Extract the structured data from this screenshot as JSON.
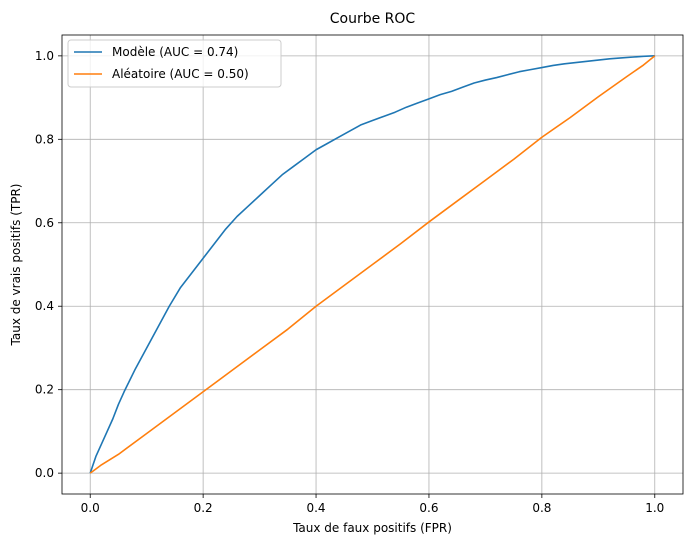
{
  "chart_data": {
    "type": "line",
    "title": "Courbe ROC",
    "xlabel": "Taux de faux positifs (FPR)",
    "ylabel": "Taux de vrais positifs (TPR)",
    "xlim": [
      -0.05,
      1.05
    ],
    "ylim": [
      -0.05,
      1.05
    ],
    "xticks": [
      0.0,
      0.2,
      0.4,
      0.6,
      0.8,
      1.0
    ],
    "yticks": [
      0.0,
      0.2,
      0.4,
      0.6,
      0.8,
      1.0
    ],
    "tick_labels": {
      "x": [
        "0.0",
        "0.2",
        "0.4",
        "0.6",
        "0.8",
        "1.0"
      ],
      "y": [
        "0.0",
        "0.2",
        "0.4",
        "0.6",
        "0.8",
        "1.0"
      ]
    },
    "grid": true,
    "legend_position": "upper-left",
    "series": [
      {
        "name": "Modèle (AUC = 0.74)",
        "color": "#1f77b4",
        "x": [
          0.0,
          0.005,
          0.01,
          0.02,
          0.03,
          0.04,
          0.05,
          0.06,
          0.08,
          0.1,
          0.12,
          0.14,
          0.16,
          0.18,
          0.2,
          0.22,
          0.24,
          0.26,
          0.28,
          0.3,
          0.32,
          0.34,
          0.36,
          0.38,
          0.4,
          0.42,
          0.44,
          0.46,
          0.48,
          0.5,
          0.52,
          0.54,
          0.56,
          0.58,
          0.6,
          0.62,
          0.64,
          0.66,
          0.68,
          0.7,
          0.72,
          0.74,
          0.76,
          0.78,
          0.8,
          0.82,
          0.84,
          0.86,
          0.88,
          0.9,
          0.92,
          0.94,
          0.96,
          0.98,
          1.0
        ],
        "y": [
          0.0,
          0.02,
          0.04,
          0.07,
          0.1,
          0.13,
          0.165,
          0.195,
          0.25,
          0.3,
          0.35,
          0.4,
          0.445,
          0.48,
          0.515,
          0.55,
          0.585,
          0.615,
          0.64,
          0.665,
          0.69,
          0.715,
          0.735,
          0.755,
          0.775,
          0.79,
          0.805,
          0.82,
          0.835,
          0.845,
          0.855,
          0.865,
          0.877,
          0.887,
          0.897,
          0.907,
          0.915,
          0.925,
          0.935,
          0.942,
          0.948,
          0.955,
          0.962,
          0.967,
          0.972,
          0.977,
          0.981,
          0.984,
          0.987,
          0.99,
          0.993,
          0.995,
          0.997,
          0.999,
          1.0
        ]
      },
      {
        "name": "Aléatoire (AUC = 0.50)",
        "color": "#ff7f0e",
        "x": [
          0.0,
          0.01,
          0.02,
          0.05,
          0.1,
          0.15,
          0.2,
          0.25,
          0.3,
          0.35,
          0.4,
          0.45,
          0.5,
          0.55,
          0.6,
          0.65,
          0.7,
          0.75,
          0.8,
          0.85,
          0.9,
          0.95,
          0.98,
          1.0
        ],
        "y": [
          0.0,
          0.01,
          0.02,
          0.045,
          0.095,
          0.145,
          0.195,
          0.245,
          0.295,
          0.345,
          0.4,
          0.45,
          0.5,
          0.55,
          0.602,
          0.652,
          0.702,
          0.752,
          0.805,
          0.852,
          0.902,
          0.95,
          0.978,
          1.0
        ]
      }
    ]
  }
}
